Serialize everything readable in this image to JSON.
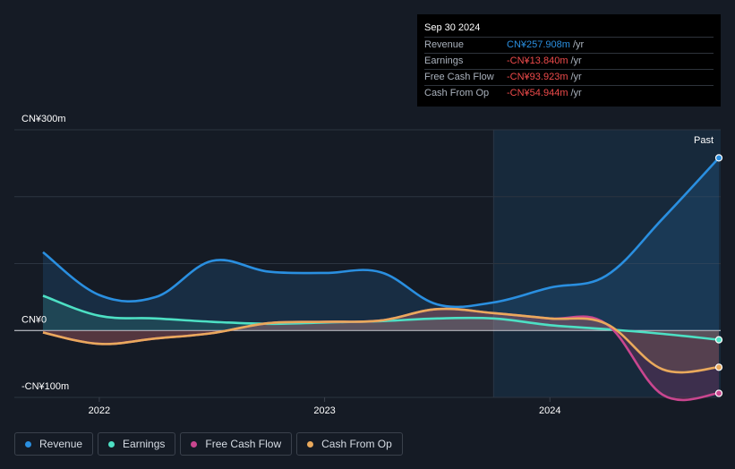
{
  "tooltip": {
    "date": "Sep 30 2024",
    "rows": [
      {
        "label": "Revenue",
        "value": "CN¥257.908m",
        "unit": "/yr",
        "color": "#2a8fe0"
      },
      {
        "label": "Earnings",
        "value": "-CN¥13.840m",
        "unit": "/yr",
        "color": "#ef4b4b"
      },
      {
        "label": "Free Cash Flow",
        "value": "-CN¥93.923m",
        "unit": "/yr",
        "color": "#ef4b4b"
      },
      {
        "label": "Cash From Op",
        "value": "-CN¥54.944m",
        "unit": "/yr",
        "color": "#ef4b4b"
      }
    ]
  },
  "past_label": "Past",
  "legend": [
    {
      "label": "Revenue",
      "color": "#2a8fe0"
    },
    {
      "label": "Earnings",
      "color": "#4de0c4"
    },
    {
      "label": "Free Cash Flow",
      "color": "#c9468f"
    },
    {
      "label": "Cash From Op",
      "color": "#e9a95c"
    }
  ],
  "chart_data": {
    "type": "line",
    "y_tick_labels": [
      "CN¥300m",
      "CN¥0",
      "-CN¥100m"
    ],
    "x_tick_labels": [
      "2022",
      "2023",
      "2024"
    ],
    "x_ticks": [
      2022.0,
      2023.0,
      2024.0
    ],
    "xlim": [
      2021.75,
      2024.75
    ],
    "ylim": [
      -100,
      300
    ],
    "past_region_start": 2023.75,
    "series": [
      {
        "name": "Revenue",
        "color": "#2a8fe0",
        "x": [
          2021.75,
          2022.0,
          2022.25,
          2022.5,
          2022.75,
          2023.0,
          2023.25,
          2023.5,
          2023.75,
          2024.0,
          2024.25,
          2024.5,
          2024.75
        ],
        "y": [
          117,
          53,
          50,
          104,
          88,
          86,
          87,
          39,
          42,
          64,
          82,
          167,
          258
        ]
      },
      {
        "name": "Earnings",
        "color": "#4de0c4",
        "x": [
          2021.75,
          2022.0,
          2022.25,
          2022.5,
          2022.75,
          2023.0,
          2023.25,
          2023.5,
          2023.75,
          2024.0,
          2024.25,
          2024.5,
          2024.75
        ],
        "y": [
          52,
          22,
          18,
          13,
          10,
          12,
          14,
          18,
          18,
          8,
          2,
          -5,
          -13.84
        ]
      },
      {
        "name": "Free Cash Flow",
        "color": "#c9468f",
        "x": [
          2021.75,
          2022.0,
          2022.25,
          2022.5,
          2022.75,
          2023.0,
          2023.25,
          2023.5,
          2023.75,
          2024.0,
          2024.25,
          2024.5,
          2024.75
        ],
        "y": [
          -3,
          -20,
          -12,
          -4,
          11,
          13,
          15,
          32,
          26,
          18,
          10,
          -96,
          -93.92
        ]
      },
      {
        "name": "Cash From Op",
        "color": "#e9a95c",
        "x": [
          2021.75,
          2022.0,
          2022.25,
          2022.5,
          2022.75,
          2023.0,
          2023.25,
          2023.5,
          2023.75,
          2024.0,
          2024.25,
          2024.5,
          2024.75
        ],
        "y": [
          -3,
          -20,
          -12,
          -4,
          11,
          13,
          15,
          32,
          26,
          18,
          10,
          -58,
          -54.94
        ]
      }
    ]
  }
}
